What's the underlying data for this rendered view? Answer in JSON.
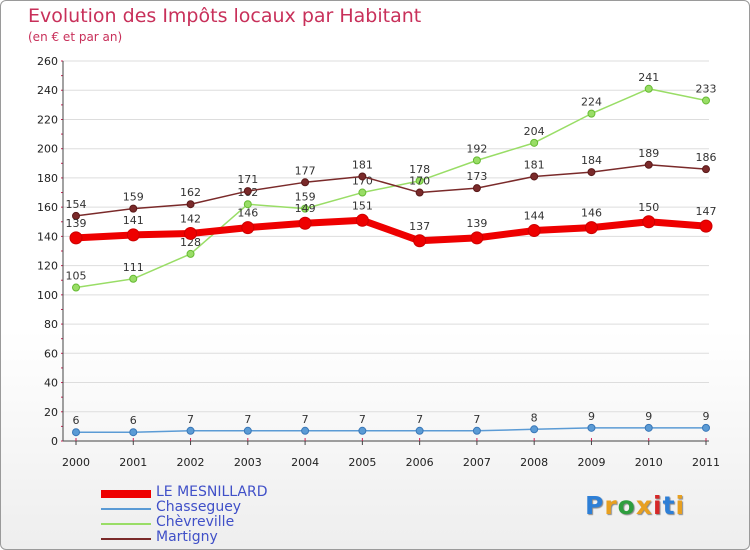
{
  "title": "Evolution des Impôts locaux par Habitant",
  "subtitle": "(en € et par an)",
  "logo": {
    "text": "Proxiti",
    "colors": [
      "#2e7fd6",
      "#e8a020",
      "#2e9e3e",
      "#e8a020",
      "#d62828",
      "#2e7fd6",
      "#e8a020"
    ]
  },
  "chart_data": {
    "type": "line",
    "title": "Evolution des Impôts locaux par Habitant",
    "subtitle": "(en € et par an)",
    "xlabel": "",
    "ylabel": "",
    "x": [
      "2000",
      "2001",
      "2002",
      "2003",
      "2004",
      "2005",
      "2006",
      "2007",
      "2008",
      "2009",
      "2010",
      "2011"
    ],
    "ylim": [
      0,
      260
    ],
    "yticks": [
      "0",
      "20",
      "40",
      "60",
      "80",
      "100",
      "120",
      "140",
      "160",
      "180",
      "200",
      "220",
      "240",
      "260"
    ],
    "grid": "horizontal",
    "legend_position": "bottom-left",
    "series": [
      {
        "name": "LE MESNILLARD",
        "color": "#ee0000",
        "values": [
          139,
          141,
          142,
          146,
          149,
          151,
          137,
          139,
          144,
          146,
          150,
          147
        ],
        "labels": [
          "139",
          "141",
          "142",
          "146",
          "149",
          "151",
          "137",
          "139",
          "144",
          "146",
          "150",
          "147"
        ]
      },
      {
        "name": "Chasseguey",
        "color": "#5b9bd5",
        "values": [
          6,
          6,
          7,
          7,
          7,
          7,
          7,
          7,
          8,
          9,
          9,
          9
        ],
        "labels": [
          "6",
          "6",
          "7",
          "7",
          "7",
          "7",
          "7",
          "7",
          "8",
          "9",
          "9",
          "9"
        ]
      },
      {
        "name": "Chèvreville",
        "color": "#99dd66",
        "values": [
          105,
          111,
          128,
          162,
          159,
          170,
          178,
          192,
          204,
          224,
          241,
          233
        ],
        "labels": [
          "105",
          "111",
          "128",
          "162",
          "159",
          "170",
          "178",
          "192",
          "204",
          "224",
          "241",
          "233"
        ]
      },
      {
        "name": "Martigny",
        "color": "#7a2a2a",
        "values": [
          154,
          159,
          162,
          171,
          177,
          181,
          170,
          173,
          181,
          184,
          189,
          186
        ],
        "labels": [
          "154",
          "159",
          "162",
          "171",
          "177",
          "181",
          "170",
          "173",
          "181",
          "184",
          "189",
          "186"
        ]
      }
    ]
  }
}
